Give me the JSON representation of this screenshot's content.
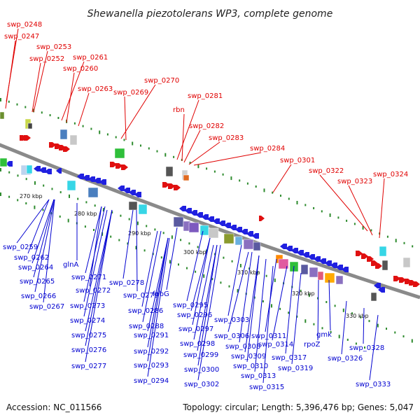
{
  "header": {
    "title": "Shewanella piezotolerans WP3, complete genome"
  },
  "footer": {
    "accession": "Accession: NC_011566",
    "summary": "Topology: circular; Length: 5,396,476 bp; Genes: 5,047"
  },
  "colors": {
    "forward_label": "#e00000",
    "reverse_label": "#0000d0",
    "backbone": "#8a8a8a",
    "gc_dash": "#2e8b2e"
  },
  "ticks": [
    "270 kbp",
    "280 kbp",
    "290 kbp",
    "300 kbp",
    "310 kbp",
    "320 kbp",
    "330 kbp"
  ],
  "forward_genes": [
    "swp_0248",
    "swp_0247",
    "swp_0253",
    "swp_0252",
    "swp_0261",
    "swp_0260",
    "swp_0263",
    "swp_0270",
    "swp_0269",
    "swp_0281",
    "rbn",
    "swp_0282",
    "swp_0283",
    "swp_0284",
    "swp_0301",
    "swp_0322",
    "swp_0323",
    "swp_0324"
  ],
  "reverse_genes": [
    "swp_0259",
    "swp_0262",
    "swp_0264",
    "glnA",
    "swp_0265",
    "swp_0266",
    "swp_0267",
    "swp_0271",
    "swp_0278",
    "swp_0272",
    "swp_0279",
    "swp_0273",
    "fabG",
    "swp_0274",
    "swp_0286",
    "swp_0295",
    "swp_0275",
    "swp_0288",
    "swp_0296",
    "swp_0291",
    "swp_0297",
    "swp_0303",
    "swp_0276",
    "swp_0298",
    "swp_0306",
    "swp_0311",
    "gmk",
    "swp_0292",
    "swp_0308",
    "swp_0314",
    "rpoZ",
    "swp_0328",
    "swp_0299",
    "swp_0309",
    "swp_0317",
    "swp_0326",
    "swp_0277",
    "swp_0293",
    "swp_0300",
    "swp_0310",
    "swp_0319",
    "swp_0313",
    "swp_0294",
    "swp_0302",
    "swp_0315",
    "swp_0333"
  ]
}
